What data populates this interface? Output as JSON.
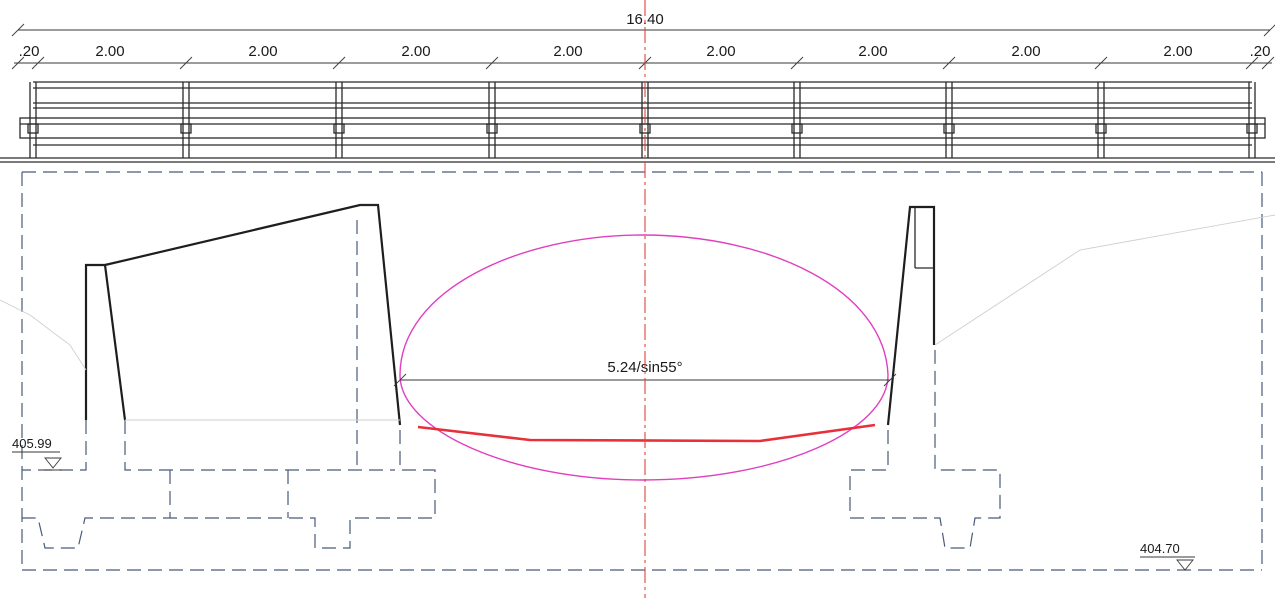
{
  "dimensions": {
    "overall": "16.40",
    "edge_left": ".20",
    "edge_right": ".20",
    "spans": [
      "2.00",
      "2.00",
      "2.00",
      "2.00",
      "2.00",
      "2.00",
      "2.00",
      "2.00"
    ]
  },
  "culvert": {
    "opening_label": "5.24/sin55°"
  },
  "levels": {
    "left": "405.99",
    "right": "404.70"
  },
  "colors": {
    "culvert_outline": "#e040c0",
    "culvert_invert": "#e8303a",
    "center_axis": "#e0443c",
    "hidden_lines": "#4a5a7a"
  }
}
